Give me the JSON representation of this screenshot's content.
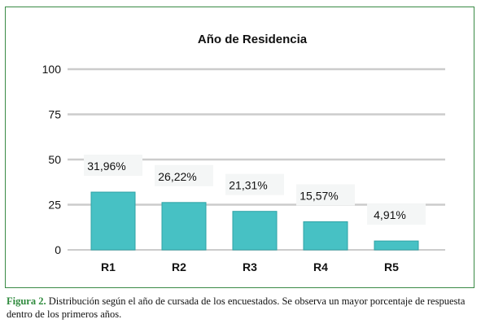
{
  "chart_data": {
    "type": "bar",
    "title": "Año de Residencia",
    "categories": [
      "R1",
      "R2",
      "R3",
      "R4",
      "R5"
    ],
    "values": [
      31.96,
      26.22,
      21.31,
      15.57,
      4.91
    ],
    "data_labels": [
      "31,96%",
      "26,22%",
      "21,31%",
      "15,57%",
      "4,91%"
    ],
    "yticks": [
      "100",
      "75",
      "50",
      "25",
      "0"
    ],
    "ylim": [
      0,
      100
    ],
    "grid": true,
    "bar_color": "#47c1c4",
    "bar_edge_color": "#2fa3a6",
    "grid_color": "#cccccc",
    "xlabel": "",
    "ylabel": ""
  },
  "caption": {
    "label": "Figura 2.",
    "text": " Distribución según el año de cursada de los encuestados. Se observa un mayor porcentaje de respuesta dentro de los primeros años."
  }
}
